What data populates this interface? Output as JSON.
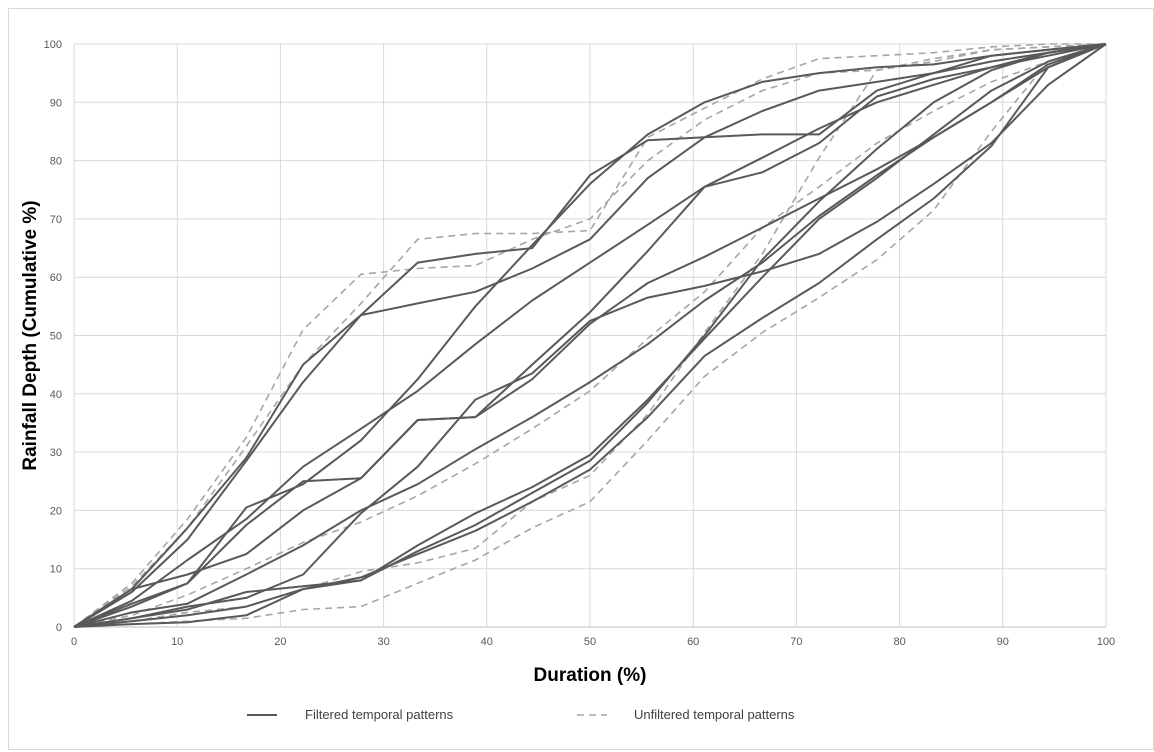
{
  "chart_data": {
    "type": "line",
    "title": "",
    "xlabel": "Duration (%)",
    "ylabel": "Rainfall Depth (Cumulative %)",
    "xlim": [
      0,
      100
    ],
    "ylim": [
      0,
      100
    ],
    "xticks": [
      0,
      10,
      20,
      30,
      40,
      50,
      60,
      70,
      80,
      90,
      100
    ],
    "yticks": [
      0,
      10,
      20,
      30,
      40,
      50,
      60,
      70,
      80,
      90,
      100
    ],
    "grid": true,
    "legend_position": "bottom",
    "legend": [
      {
        "label": "Filtered temporal patterns",
        "style": "solid",
        "color": "#595959"
      },
      {
        "label": "Unfiltered temporal patterns",
        "style": "dashed",
        "color": "#a6a6a6"
      }
    ],
    "series": [
      {
        "group": "filtered",
        "x": [
          0,
          5.6,
          11,
          16.7,
          22.2,
          27.8,
          33.3,
          38.9,
          44.4,
          50,
          55.6,
          61.1,
          66.7,
          72.2,
          77.8,
          83.3,
          88.9,
          94.4,
          100
        ],
        "y": [
          0,
          6.5,
          17,
          29,
          45,
          53.5,
          55.5,
          57.5,
          61.5,
          66.5,
          77,
          84,
          88.5,
          92,
          93.5,
          95,
          97,
          98.5,
          100
        ]
      },
      {
        "group": "filtered",
        "x": [
          0,
          5.6,
          11,
          16.7,
          22.2,
          27.8,
          33.3,
          38.9,
          44.4,
          50,
          55.6,
          61.1,
          66.7,
          72.2,
          77.8,
          83.3,
          88.9,
          94.4,
          100
        ],
        "y": [
          0,
          6,
          15,
          28.5,
          42,
          53.5,
          62.5,
          64,
          65,
          77.5,
          83.5,
          84,
          84.5,
          84.5,
          92,
          95,
          98,
          99,
          100
        ]
      },
      {
        "group": "filtered",
        "x": [
          0,
          5.6,
          11,
          16.7,
          22.2,
          27.8,
          33.3,
          38.9,
          44.4,
          50,
          55.6,
          61.1,
          66.7,
          72.2,
          77.8,
          83.3,
          88.9,
          94.4,
          100
        ],
        "y": [
          0,
          6.5,
          9,
          12.5,
          20,
          25.5,
          35.5,
          36,
          45,
          54,
          64.5,
          75.5,
          78,
          83,
          91,
          94,
          96,
          98,
          100
        ]
      },
      {
        "group": "filtered",
        "x": [
          0,
          5.6,
          11,
          16.7,
          22.2,
          27.8,
          33.3,
          38.9,
          44.4,
          50,
          55.6,
          61.1,
          66.7,
          72.2,
          77.8,
          83.3,
          88.9,
          94.4,
          100
        ],
        "y": [
          0,
          4,
          7.5,
          20.5,
          24.5,
          32,
          42.5,
          55,
          65.5,
          76,
          84.5,
          90,
          93.5,
          95,
          96,
          96.5,
          98,
          99,
          100
        ]
      },
      {
        "group": "filtered",
        "x": [
          0,
          5.6,
          11,
          16.7,
          22.2,
          27.8,
          33.3,
          38.9,
          44.4,
          50,
          55.6,
          61.1,
          66.7,
          72.2,
          77.8,
          83.3,
          88.9,
          94.4,
          100
        ],
        "y": [
          0,
          4.5,
          11.5,
          18.5,
          27.5,
          34,
          40.5,
          48.5,
          56,
          62.5,
          69,
          75.5,
          80.5,
          85.5,
          90,
          93,
          96,
          98.5,
          100
        ]
      },
      {
        "group": "filtered",
        "x": [
          0,
          5.6,
          11,
          16.7,
          22.2,
          27.8,
          33.3,
          38.9,
          44.4,
          50,
          55.6,
          61.1,
          66.7,
          72.2,
          77.8,
          83.3,
          88.9,
          94.4,
          100
        ],
        "y": [
          0,
          3.5,
          7.5,
          17.5,
          25,
          25.5,
          35.5,
          36,
          42.5,
          52,
          59,
          63.5,
          68.5,
          73.5,
          78.5,
          84,
          90,
          96.5,
          100
        ]
      },
      {
        "group": "filtered",
        "x": [
          0,
          5.6,
          11,
          16.7,
          22.2,
          27.8,
          33.3,
          38.9,
          44.4,
          50,
          55.6,
          61.1,
          66.7,
          72.2,
          77.8,
          83.3,
          88.9,
          94.4,
          100
        ],
        "y": [
          0,
          2.5,
          4,
          9,
          14,
          20,
          24.5,
          30.5,
          36,
          42,
          48.5,
          56,
          62.5,
          70.5,
          77.5,
          84,
          90,
          96,
          100
        ]
      },
      {
        "group": "filtered",
        "x": [
          0,
          5.6,
          11,
          16.7,
          22.2,
          27.8,
          33.3,
          38.9,
          44.4,
          50,
          55.6,
          61.1,
          66.7,
          72.2,
          77.8,
          83.3,
          88.9,
          94.4,
          100
        ],
        "y": [
          0,
          1.5,
          3.5,
          5,
          9,
          19.5,
          27.5,
          39,
          43.5,
          52.5,
          56.5,
          58.5,
          61,
          64,
          69.5,
          76,
          83,
          93,
          100
        ]
      },
      {
        "group": "filtered",
        "x": [
          0,
          5.6,
          11,
          16.7,
          22.2,
          27.8,
          33.3,
          38.9,
          44.4,
          50,
          55.6,
          61.1,
          66.7,
          72.2,
          77.8,
          83.3,
          88.9,
          94.4,
          100
        ],
        "y": [
          0,
          1.5,
          3,
          6,
          7,
          8,
          14,
          19.5,
          24,
          29.5,
          39,
          49.5,
          60,
          70,
          77,
          84.5,
          92,
          97,
          100
        ]
      },
      {
        "group": "filtered",
        "x": [
          0,
          5.6,
          11,
          16.7,
          22.2,
          27.8,
          33.3,
          38.9,
          44.4,
          50,
          55.6,
          61.1,
          66.7,
          72.2,
          77.8,
          83.3,
          88.9,
          94.4,
          100
        ],
        "y": [
          0,
          1,
          2,
          3.5,
          6.5,
          8.5,
          12.5,
          16.5,
          21.5,
          27,
          36,
          46.5,
          53,
          59,
          66.5,
          73.5,
          82.5,
          96,
          100
        ]
      },
      {
        "group": "filtered",
        "x": [
          0,
          5.6,
          11,
          16.7,
          22.2,
          27.8,
          33.3,
          38.9,
          44.4,
          50,
          55.6,
          61.1,
          66.7,
          72.2,
          77.8,
          83.3,
          88.9,
          94.4,
          100
        ],
        "y": [
          0,
          0.5,
          0.8,
          2,
          6.5,
          8,
          13,
          17.5,
          23,
          28.5,
          38.5,
          50,
          63,
          73,
          82,
          90,
          95.5,
          98.5,
          100
        ]
      },
      {
        "group": "unfiltered",
        "x": [
          0,
          5.6,
          11,
          16.7,
          22.2,
          27.8,
          33.3,
          38.9,
          44.4,
          50,
          55.6,
          61.1,
          66.7,
          72.2,
          77.8,
          83.3,
          88.9,
          94.4,
          100
        ],
        "y": [
          0,
          7.5,
          18.5,
          32.5,
          51,
          60.5,
          61.5,
          62,
          66.5,
          70,
          80,
          87,
          92,
          95,
          95.5,
          97.5,
          99,
          99.5,
          100
        ]
      },
      {
        "group": "unfiltered",
        "x": [
          0,
          5.6,
          11,
          16.7,
          22.2,
          27.8,
          33.3,
          38.9,
          44.4,
          50,
          55.6,
          61.1,
          66.7,
          72.2,
          77.8,
          83.3,
          88.9,
          94.4,
          100
        ],
        "y": [
          0,
          7,
          17,
          31,
          45,
          55.5,
          66.5,
          67.5,
          67.5,
          68,
          84,
          89,
          94,
          97.5,
          98,
          98.5,
          99.5,
          100,
          100
        ]
      },
      {
        "group": "unfiltered",
        "x": [
          0,
          5.6,
          11,
          16.7,
          22.2,
          27.8,
          33.3,
          38.9,
          44.4,
          50,
          55.6,
          61.1,
          66.7,
          72.2,
          77.8,
          83.3,
          88.9,
          94.4,
          100
        ],
        "y": [
          0,
          1,
          2.5,
          3.5,
          6.5,
          9.5,
          11,
          13.5,
          21.5,
          26,
          36.5,
          50.5,
          64,
          80.5,
          95.5,
          97,
          99,
          99.5,
          100
        ]
      },
      {
        "group": "unfiltered",
        "x": [
          0,
          5.6,
          11,
          16.7,
          22.2,
          27.8,
          33.3,
          38.9,
          44.4,
          50,
          55.6,
          61.1,
          66.7,
          72.2,
          77.8,
          83.3,
          88.9,
          94.4,
          100
        ],
        "y": [
          0,
          2,
          5.5,
          10,
          14.5,
          18,
          22.5,
          28,
          34,
          40.5,
          49.5,
          57.5,
          68.5,
          75.5,
          83,
          88.5,
          93.5,
          97,
          100
        ]
      },
      {
        "group": "unfiltered",
        "x": [
          0,
          5.6,
          11,
          16.7,
          22.2,
          27.8,
          33.3,
          38.9,
          44.4,
          50,
          55.6,
          61.1,
          66.7,
          72.2,
          77.8,
          83.3,
          88.9,
          94.4,
          100
        ],
        "y": [
          0,
          0.5,
          1,
          1.5,
          3,
          3.5,
          7.5,
          11.5,
          17,
          21.5,
          32,
          43,
          50.5,
          56.5,
          63,
          71.5,
          85,
          97,
          100
        ]
      }
    ]
  }
}
